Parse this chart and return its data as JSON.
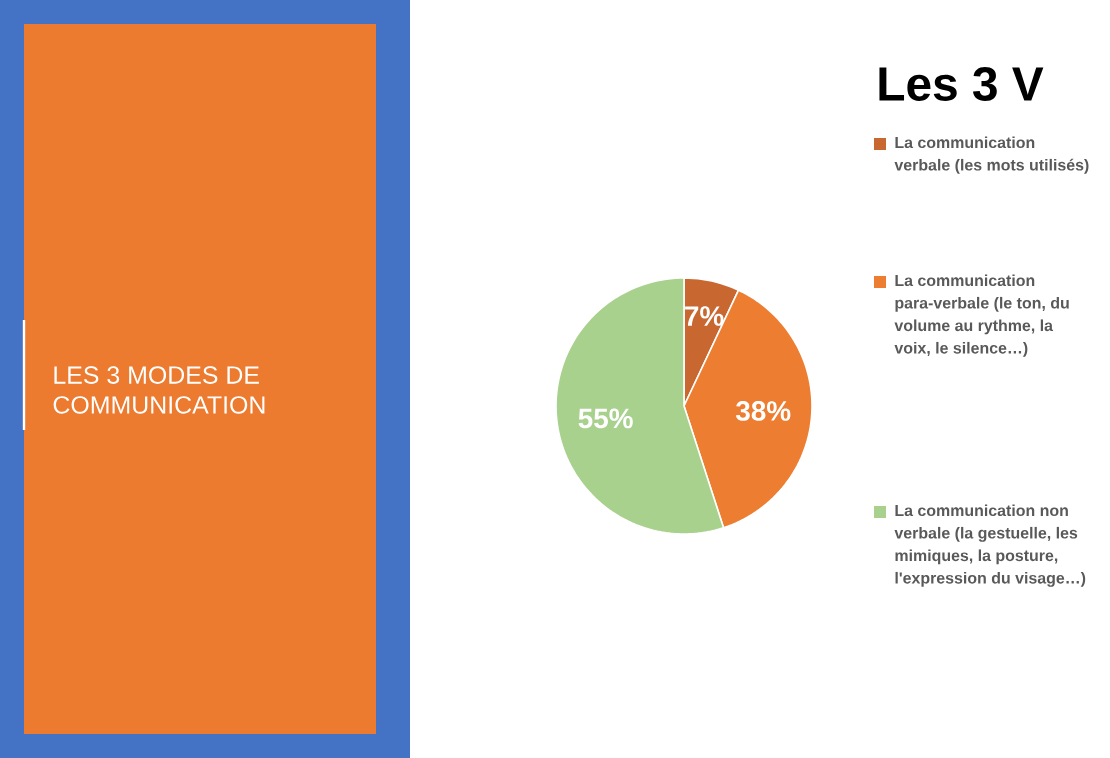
{
  "chart_data": {
    "type": "pie",
    "title": "Les 3 V",
    "categories": [
      "La communication verbale (les mots utilisés)",
      "La communication para-verbale (le ton, du volume au rythme, la voix, le silence…)",
      "La communication non verbale (la gestuelle, les mimiques, la posture, l'expression du visage…)"
    ],
    "values": [
      7,
      38,
      55
    ],
    "value_labels": [
      "7%",
      "38%",
      "55%"
    ],
    "colors": [
      "#c8672f",
      "#ed7d31",
      "#a9d18e"
    ],
    "legend": "right",
    "annotations": [
      "LES 3 MODES DE COMMUNICATION"
    ]
  }
}
